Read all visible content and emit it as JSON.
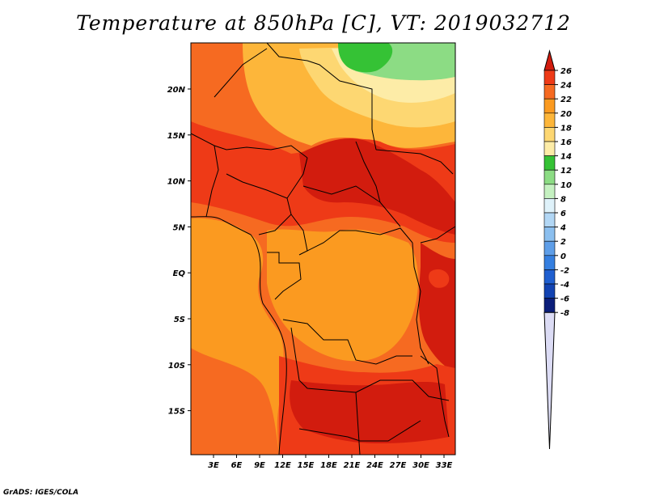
{
  "title": "Temperature at 850hPa [C], VT: 2019032712",
  "credit": "GrADS: IGES/COLA",
  "lat_labels": [
    "20N",
    "15N",
    "10N",
    "5N",
    "EQ",
    "5S",
    "10S",
    "15S"
  ],
  "lon_labels": [
    "3E",
    "6E",
    "9E",
    "12E",
    "15E",
    "18E",
    "21E",
    "24E",
    "27E",
    "30E",
    "33E"
  ],
  "colorbar": {
    "labels": [
      "26",
      "24",
      "22",
      "20",
      "18",
      "16",
      "14",
      "12",
      "10",
      "8",
      "6",
      "4",
      "2",
      "0",
      "-2",
      "-4",
      "-6",
      "-8"
    ],
    "colors": [
      "#d21c0e",
      "#ee3a17",
      "#f66a21",
      "#fb9a20",
      "#fdb63a",
      "#fdd772",
      "#fdeca7",
      "#35c235",
      "#8cdc84",
      "#c5f1c1",
      "#dff2fa",
      "#b2d7f5",
      "#8bbfef",
      "#5e9ee8",
      "#357fe0",
      "#1f5fd0",
      "#1243b2",
      "#0b1e7a"
    ]
  },
  "map_colors": {
    "sahara": "#fdb63a",
    "sahara_light": "#fdd772",
    "sahara_pale": "#fdeca7",
    "north_green": "#35c235",
    "north_lightgreen": "#8cdc84",
    "base": "#f66a21",
    "hot": "#ee3a17",
    "hottest": "#d21c0e",
    "congo": "#fb9a20",
    "ocean": "#fb9a20"
  }
}
